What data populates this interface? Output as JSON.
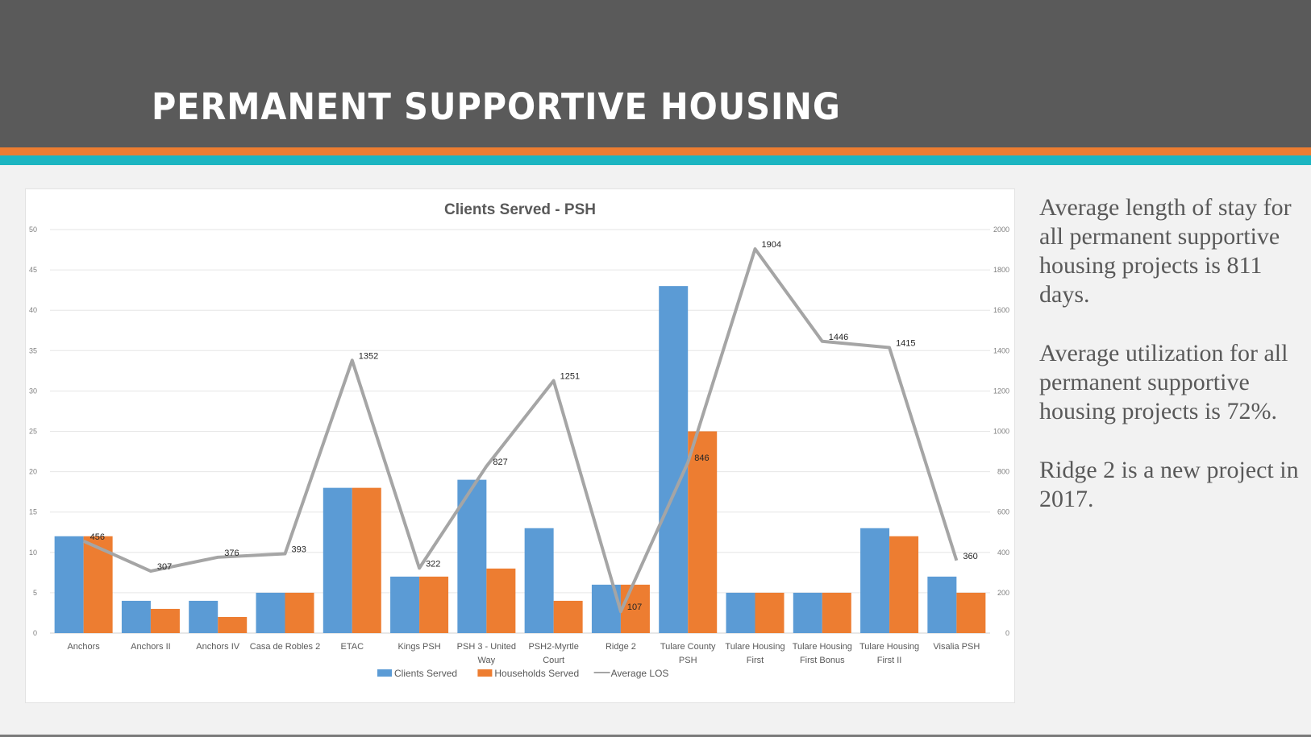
{
  "slide": {
    "title": "PERMANENT SUPPORTIVE HOUSING",
    "colors": {
      "header": "#5a5a5a",
      "accent_orange": "#ed7d31",
      "accent_teal": "#1cb5c1"
    }
  },
  "notes": [
    "Average length of stay for all permanent supportive housing projects is 811 days.",
    "Average utilization for all permanent supportive housing projects is 72%.",
    "Ridge 2 is a new project in 2017."
  ],
  "chart_data": {
    "type": "bar",
    "title": "Clients Served - PSH",
    "categories": [
      "Anchors",
      "Anchors II",
      "Anchors IV",
      "Casa de Robles 2",
      "ETAC",
      "Kings PSH",
      "PSH 3 - United Way",
      "PSH2-Myrtle Court",
      "Ridge 2",
      "Tulare County PSH",
      "Tulare Housing First",
      "Tulare Housing First Bonus",
      "Tulare Housing First II",
      "Visalia PSH"
    ],
    "series": [
      {
        "name": "Clients Served",
        "type": "bar",
        "axis": "left",
        "color": "#5b9bd5",
        "values": [
          12,
          4,
          4,
          5,
          18,
          7,
          19,
          13,
          6,
          43,
          5,
          5,
          13,
          7
        ]
      },
      {
        "name": "Households Served",
        "type": "bar",
        "axis": "left",
        "color": "#ed7d31",
        "values": [
          12,
          3,
          2,
          5,
          18,
          7,
          8,
          4,
          6,
          25,
          5,
          5,
          12,
          5
        ]
      },
      {
        "name": "Average LOS",
        "type": "line",
        "axis": "right",
        "color": "#a5a5a5",
        "values": [
          456,
          307,
          376,
          393,
          1352,
          322,
          827,
          1251,
          107,
          846,
          1904,
          1446,
          1415,
          360
        ],
        "data_labels": true
      }
    ],
    "ylim_left": [
      0,
      50
    ],
    "yticks_left": [
      "0",
      "5",
      "10",
      "15",
      "20",
      "25",
      "30",
      "35",
      "40",
      "45",
      "50"
    ],
    "ylim_right": [
      0,
      2000
    ],
    "yticks_right": [
      "0",
      "200",
      "400",
      "600",
      "800",
      "1000",
      "1200",
      "1400",
      "1600",
      "1800",
      "2000"
    ],
    "grid": true,
    "legend": "bottom"
  }
}
